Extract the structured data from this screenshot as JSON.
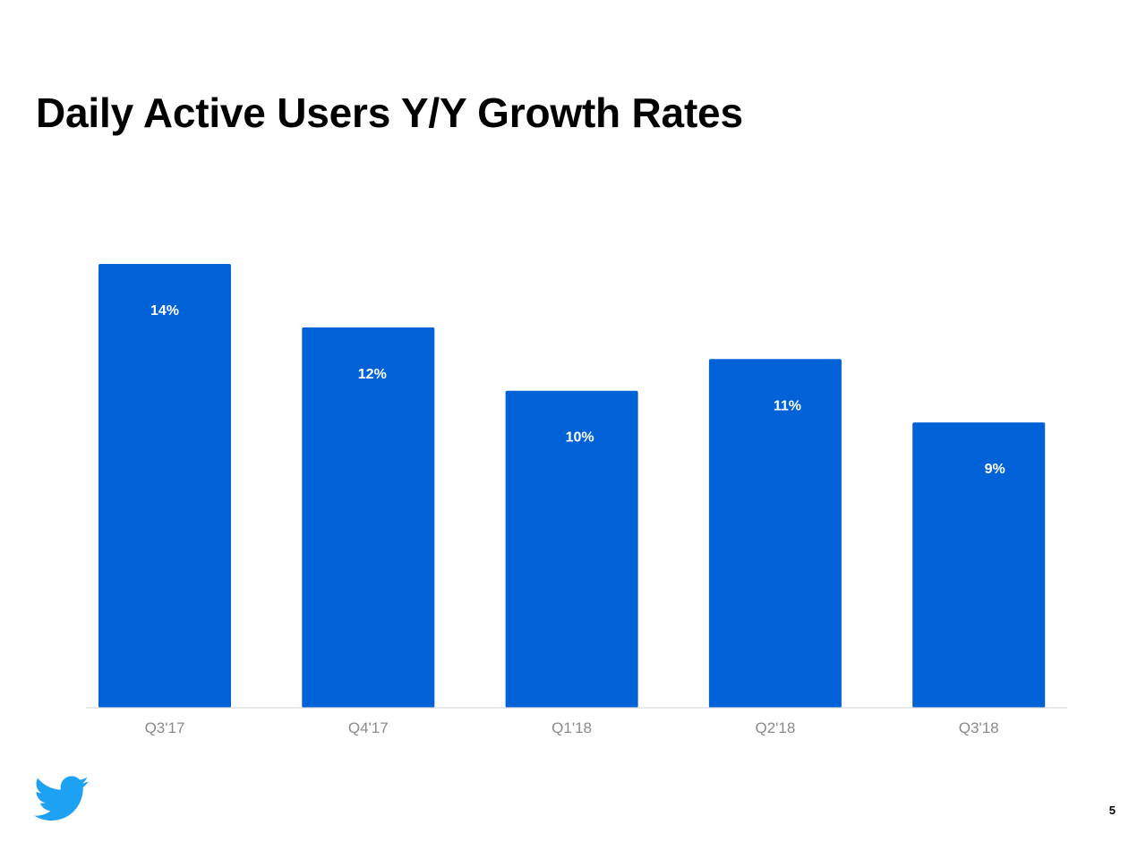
{
  "slide": {
    "title": "Daily Active Users Y/Y Growth Rates",
    "page_number": "5",
    "logo_icon": "twitter-bird-icon",
    "logo_color": "#1da1f2"
  },
  "chart_data": {
    "type": "bar",
    "title": "Daily Active Users Y/Y Growth Rates",
    "xlabel": "",
    "ylabel": "",
    "categories": [
      "Q3'17",
      "Q4'17",
      "Q1'18",
      "Q2'18",
      "Q3'18"
    ],
    "values": [
      14,
      12,
      10,
      11,
      9
    ],
    "data_labels": [
      "14%",
      "12%",
      "10%",
      "11%",
      "9%"
    ],
    "unit": "%",
    "ylim": [
      0,
      14
    ],
    "grid": false,
    "legend": "none",
    "bar_color": "#0062d6",
    "axis_color": "#d9d9d9",
    "tick_color": "#8a8a8a",
    "label_color": "#ffffff"
  }
}
